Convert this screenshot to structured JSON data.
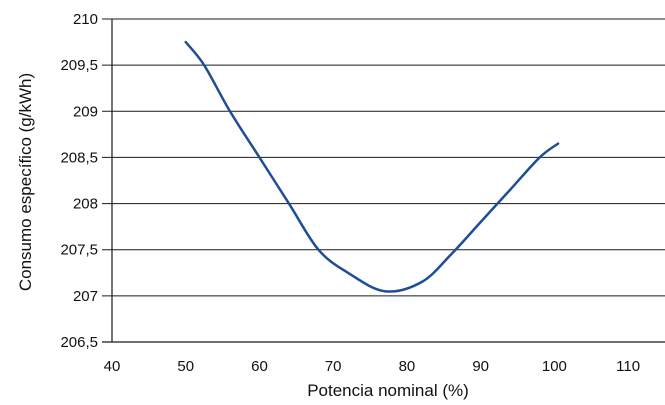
{
  "chart_data": {
    "type": "line",
    "title": "",
    "xlabel": "Potencia nominal (%)",
    "ylabel": "Consumo específico (g/kWh)",
    "xlim": [
      40,
      115
    ],
    "ylim": [
      206.5,
      210
    ],
    "x_ticks": [
      {
        "value": 40,
        "label": "40"
      },
      {
        "value": 50,
        "label": "50"
      },
      {
        "value": 60,
        "label": "60"
      },
      {
        "value": 70,
        "label": "70"
      },
      {
        "value": 80,
        "label": "80"
      },
      {
        "value": 90,
        "label": "90"
      },
      {
        "value": 100,
        "label": "100"
      },
      {
        "value": 110,
        "label": "110"
      }
    ],
    "y_ticks": [
      {
        "value": 206.5,
        "label": "206,5"
      },
      {
        "value": 207,
        "label": "207"
      },
      {
        "value": 207.5,
        "label": "207,5"
      },
      {
        "value": 208,
        "label": "208"
      },
      {
        "value": 208.5,
        "label": "208,5"
      },
      {
        "value": 209,
        "label": "209"
      },
      {
        "value": 209.5,
        "label": "209,5"
      },
      {
        "value": 210,
        "label": "210"
      }
    ],
    "grid": "horizontal",
    "legend": "none",
    "series": [
      {
        "color": "#1f4e96",
        "x": [
          50,
          52.5,
          56,
          60,
          64,
          68,
          72,
          77,
          82,
          86,
          90,
          94,
          98,
          100.5
        ],
        "y": [
          209.75,
          209.5,
          209.0,
          208.5,
          208.0,
          207.5,
          207.25,
          207.05,
          207.15,
          207.45,
          207.8,
          208.15,
          208.5,
          208.65
        ]
      }
    ]
  }
}
